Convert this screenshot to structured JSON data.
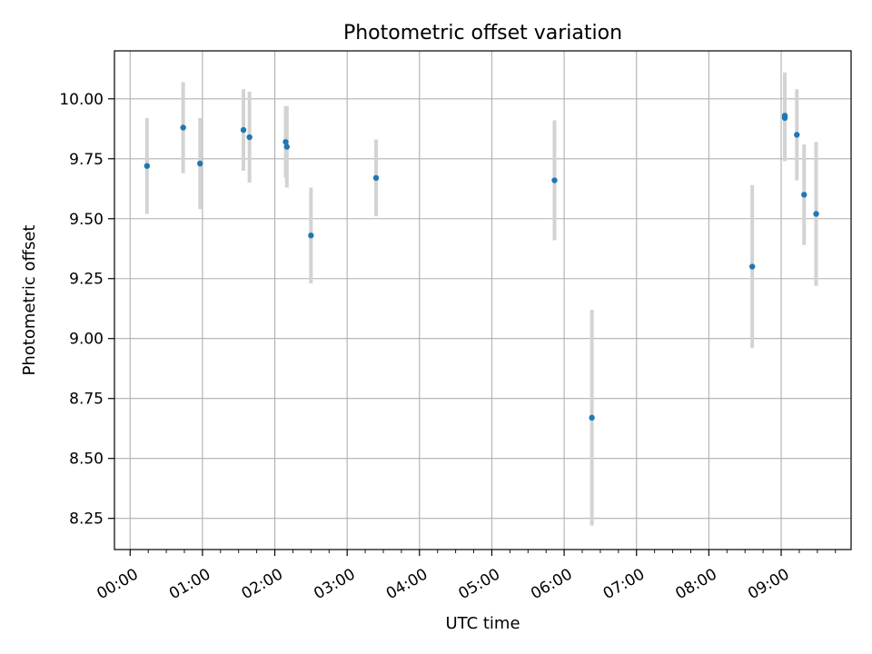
{
  "chart_data": {
    "type": "scatter",
    "title": "Photometric offset variation",
    "xlabel": "UTC time",
    "ylabel": "Photometric offset",
    "x_tick_labels": [
      "00:00",
      "01:00",
      "02:00",
      "03:00",
      "04:00",
      "05:00",
      "06:00",
      "07:00",
      "08:00",
      "09:00"
    ],
    "x_ticks_hours": [
      0,
      1,
      2,
      3,
      4,
      5,
      6,
      7,
      8,
      9
    ],
    "y_tick_labels": [
      "8.25",
      "8.50",
      "8.75",
      "9.00",
      "9.25",
      "9.50",
      "9.75",
      "10.00"
    ],
    "y_ticks": [
      8.25,
      8.5,
      8.75,
      9.0,
      9.25,
      9.5,
      9.75,
      10.0
    ],
    "xlim": [
      "23:47",
      "09:58"
    ],
    "ylim": [
      8.12,
      10.2
    ],
    "grid": true,
    "marker_color": "#1f77b4",
    "errorbar_color": "#d3d3d3",
    "points": [
      {
        "x": "00:14",
        "y": 9.72,
        "yerr": 0.2
      },
      {
        "x": "00:44",
        "y": 9.88,
        "yerr": 0.19
      },
      {
        "x": "00:58",
        "y": 9.73,
        "yerr": 0.19
      },
      {
        "x": "01:34",
        "y": 9.87,
        "yerr": 0.17
      },
      {
        "x": "01:39",
        "y": 9.84,
        "yerr": 0.19
      },
      {
        "x": "02:09",
        "y": 9.82,
        "yerr": 0.15
      },
      {
        "x": "02:10",
        "y": 9.8,
        "yerr": 0.17
      },
      {
        "x": "02:30",
        "y": 9.43,
        "yerr": 0.2
      },
      {
        "x": "03:24",
        "y": 9.67,
        "yerr": 0.16
      },
      {
        "x": "05:52",
        "y": 9.66,
        "yerr": 0.25
      },
      {
        "x": "06:23",
        "y": 8.67,
        "yerr": 0.45
      },
      {
        "x": "08:36",
        "y": 9.3,
        "yerr": 0.34
      },
      {
        "x": "09:03",
        "y": 9.92,
        "yerr": 0.18
      },
      {
        "x": "09:03",
        "y": 9.93,
        "yerr": 0.18
      },
      {
        "x": "09:13",
        "y": 9.85,
        "yerr": 0.19
      },
      {
        "x": "09:19",
        "y": 9.6,
        "yerr": 0.21
      },
      {
        "x": "09:29",
        "y": 9.52,
        "yerr": 0.3
      }
    ]
  }
}
